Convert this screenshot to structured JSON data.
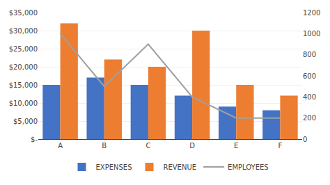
{
  "chart_data": {
    "type": "bar",
    "categories": [
      "A",
      "B",
      "C",
      "D",
      "E",
      "F"
    ],
    "series": [
      {
        "name": "EXPENSES",
        "color": "#4472C4",
        "values": [
          15000,
          17000,
          15000,
          12000,
          9000,
          8000
        ]
      },
      {
        "name": "REVENUE",
        "color": "#ED7D31",
        "values": [
          32000,
          22000,
          20000,
          30000,
          15000,
          12000
        ]
      },
      {
        "name": "EMPLOYEES",
        "type": "line",
        "axis": "y2",
        "color": "#A0A0A0",
        "values": [
          1000,
          500,
          900,
          400,
          200,
          200
        ]
      }
    ],
    "ylim": [
      0,
      35000
    ],
    "yticks": [
      {
        "value": 0,
        "label": "$-"
      },
      {
        "value": 5000,
        "label": "$5,000"
      },
      {
        "value": 10000,
        "label": "$10,000"
      },
      {
        "value": 15000,
        "label": "$15,000"
      },
      {
        "value": 20000,
        "label": "$20,000"
      },
      {
        "value": 25000,
        "label": "$25,000"
      },
      {
        "value": 30000,
        "label": "$30,000"
      },
      {
        "value": 35000,
        "label": "$35,000"
      }
    ],
    "y2lim": [
      0,
      1200
    ],
    "y2ticks": [
      0,
      200,
      400,
      600,
      800,
      1000,
      1200
    ],
    "grid": true,
    "legend": "bottom"
  }
}
